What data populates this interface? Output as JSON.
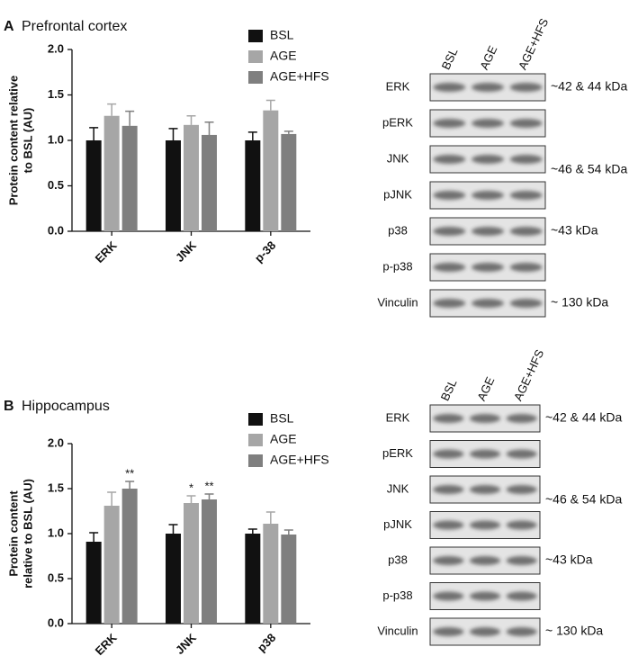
{
  "chart_data": [
    {
      "type": "bar",
      "panel": "A",
      "title": "Prefrontal cortex",
      "y_label": [
        "Protein content relative",
        "to BSL (AU)"
      ],
      "categories": [
        "ERK",
        "JNK",
        "p-38"
      ],
      "series": [
        {
          "name": "BSL",
          "color": "#111111",
          "values": [
            1.0,
            1.0,
            1.0
          ],
          "errors": [
            0.14,
            0.13,
            0.09
          ]
        },
        {
          "name": "AGE",
          "color": "#a6a6a6",
          "values": [
            1.27,
            1.17,
            1.33
          ],
          "errors": [
            0.13,
            0.1,
            0.11
          ]
        },
        {
          "name": "AGE+HFS",
          "color": "#7f7f7f",
          "values": [
            1.16,
            1.06,
            1.07
          ],
          "errors": [
            0.16,
            0.14,
            0.03
          ]
        }
      ],
      "ylim": [
        0,
        2
      ],
      "yticks": [
        {
          "value": 0,
          "label": "0.0"
        },
        {
          "value": 0.5,
          "label": "0.5"
        },
        {
          "value": 1,
          "label": "1.0"
        },
        {
          "value": 1.5,
          "label": "1.5"
        },
        {
          "value": 2,
          "label": "2.0"
        }
      ]
    },
    {
      "type": "bar",
      "panel": "B",
      "title": "Hippocampus",
      "y_label": [
        "Protein content",
        "relative to BSL (AU)"
      ],
      "categories": [
        "ERK",
        "JNK",
        "p38"
      ],
      "series": [
        {
          "name": "BSL",
          "color": "#111111",
          "values": [
            0.91,
            1.0,
            1.0
          ],
          "errors": [
            0.1,
            0.1,
            0.05
          ],
          "significance": [
            null,
            null,
            null
          ]
        },
        {
          "name": "AGE",
          "color": "#a6a6a6",
          "values": [
            1.31,
            1.34,
            1.11
          ],
          "errors": [
            0.15,
            0.08,
            0.13
          ],
          "significance": [
            null,
            "*",
            null
          ]
        },
        {
          "name": "AGE+HFS",
          "color": "#7f7f7f",
          "values": [
            1.5,
            1.38,
            0.99
          ],
          "errors": [
            0.08,
            0.06,
            0.05
          ],
          "significance": [
            "**",
            "**",
            null
          ]
        }
      ],
      "ylim": [
        0,
        2
      ],
      "yticks": [
        {
          "value": 0,
          "label": "0.0"
        },
        {
          "value": 0.5,
          "label": "0.5"
        },
        {
          "value": 1,
          "label": "1.0"
        },
        {
          "value": 1.5,
          "label": "1.5"
        },
        {
          "value": 2,
          "label": "2.0"
        }
      ]
    }
  ],
  "blots": [
    {
      "lanes": [
        "BSL",
        "AGE",
        "AGE+HFS"
      ],
      "rows": [
        {
          "label": "ERK",
          "size": "~42 & 44 kDa"
        },
        {
          "label": "pERK",
          "size": null
        },
        {
          "label": "JNK",
          "size": "~46 & 54 kDa"
        },
        {
          "label": "pJNK",
          "size": null
        },
        {
          "label": "p38",
          "size": "~43 kDa"
        },
        {
          "label": "p-p38",
          "size": null
        },
        {
          "label": "Vinculin",
          "size": "~ 130 kDa"
        }
      ]
    },
    {
      "lanes": [
        "BSL",
        "AGE",
        "AGE+HFS"
      ],
      "rows": [
        {
          "label": "ERK",
          "size": "~42 & 44 kDa"
        },
        {
          "label": "pERK",
          "size": null
        },
        {
          "label": "JNK",
          "size": "~46 & 54 kDa"
        },
        {
          "label": "pJNK",
          "size": null
        },
        {
          "label": "p38",
          "size": "~43 kDa"
        },
        {
          "label": "p-p38",
          "size": null
        },
        {
          "label": "Vinculin",
          "size": "~ 130 kDa"
        }
      ]
    }
  ]
}
